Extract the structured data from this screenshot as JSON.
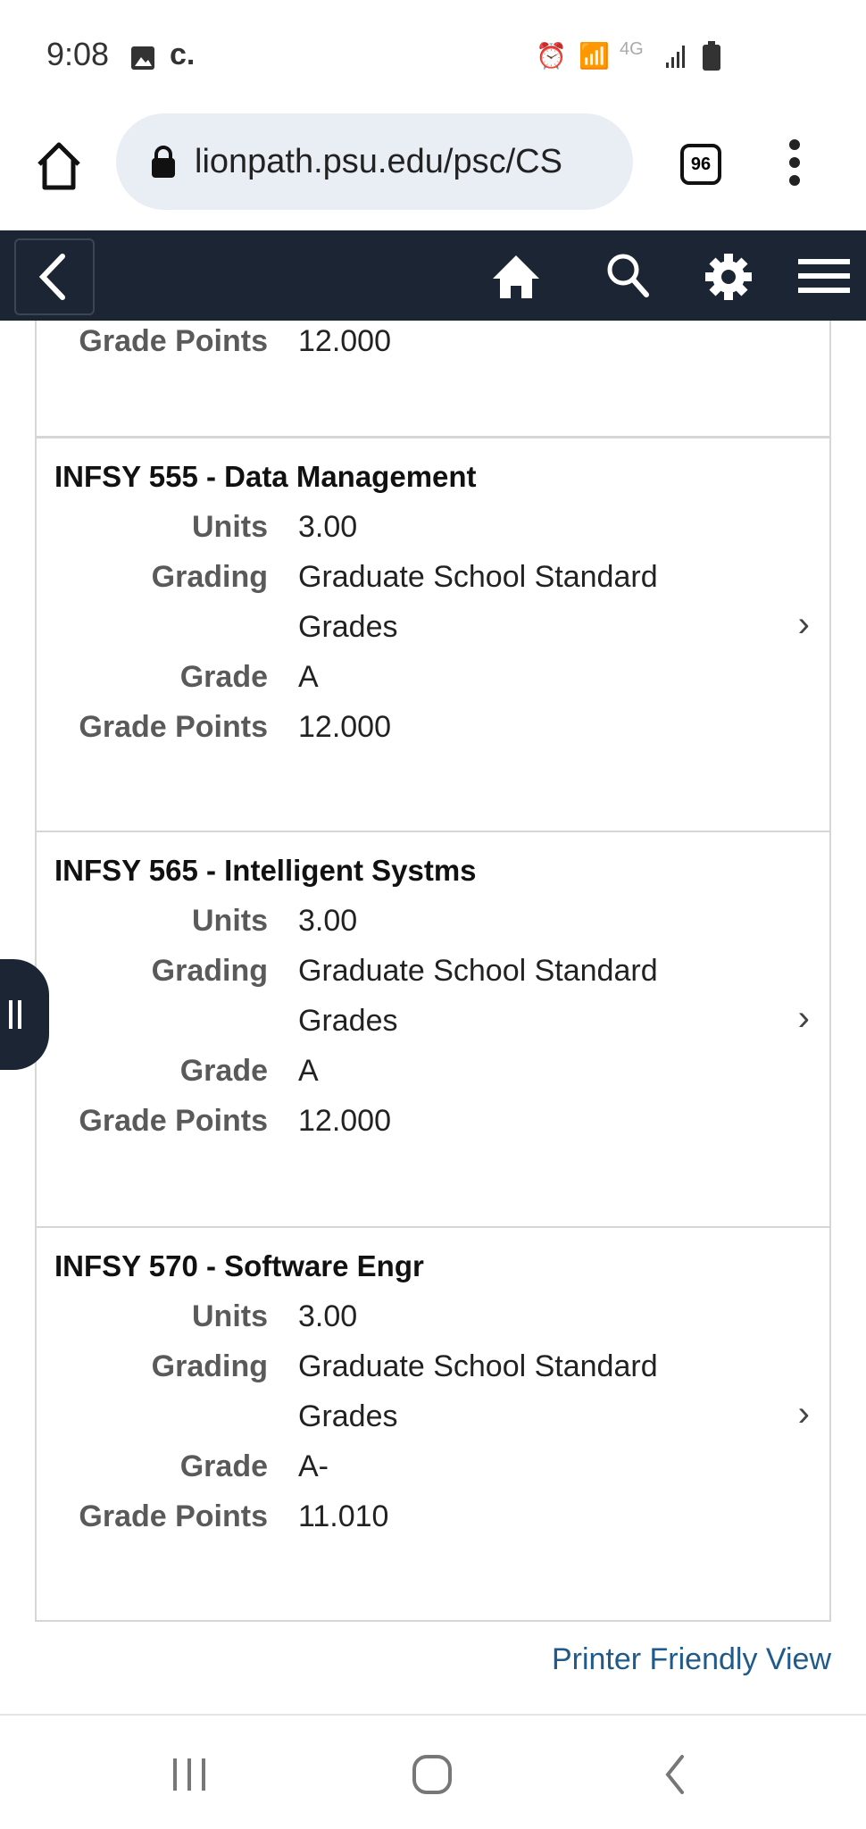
{
  "status_bar": {
    "time": "9:08",
    "carrier_glyph": "c.",
    "network": "4G",
    "icons": [
      "gallery-icon",
      "alarm-icon",
      "wifi-icon",
      "signal-icon",
      "battery-icon"
    ]
  },
  "browser": {
    "url": "lionpath.psu.edu/psc/CS",
    "tab_count": "96"
  },
  "navbar": {
    "icons": [
      "back-icon",
      "home-icon",
      "search-icon",
      "gear-icon",
      "hamburger-icon"
    ],
    "background": "#1c2533"
  },
  "partial_card": {
    "grade_points_label": "Grade Points",
    "grade_points": "12.000"
  },
  "courses": [
    {
      "title": "INFSY 555 - Data Management",
      "units_label": "Units",
      "units": "3.00",
      "grading_label": "Grading",
      "grading_1": "Graduate School Standard",
      "grading_2": "Grades",
      "grade_label": "Grade",
      "grade": "A",
      "points_label": "Grade Points",
      "points": "12.000"
    },
    {
      "title": "INFSY 565 - Intelligent Systms",
      "units_label": "Units",
      "units": "3.00",
      "grading_label": "Grading",
      "grading_1": "Graduate School Standard",
      "grading_2": "Grades",
      "grade_label": "Grade",
      "grade": "A",
      "points_label": "Grade Points",
      "points": "12.000"
    },
    {
      "title": "INFSY 570 - Software Engr",
      "units_label": "Units",
      "units": "3.00",
      "grading_label": "Grading",
      "grading_1": "Graduate School Standard",
      "grading_2": "Grades",
      "grade_label": "Grade",
      "grade": "A-",
      "points_label": "Grade Points",
      "points": "11.010"
    }
  ],
  "printer_link": "Printer Friendly View",
  "link_color": "#1f5a8a"
}
